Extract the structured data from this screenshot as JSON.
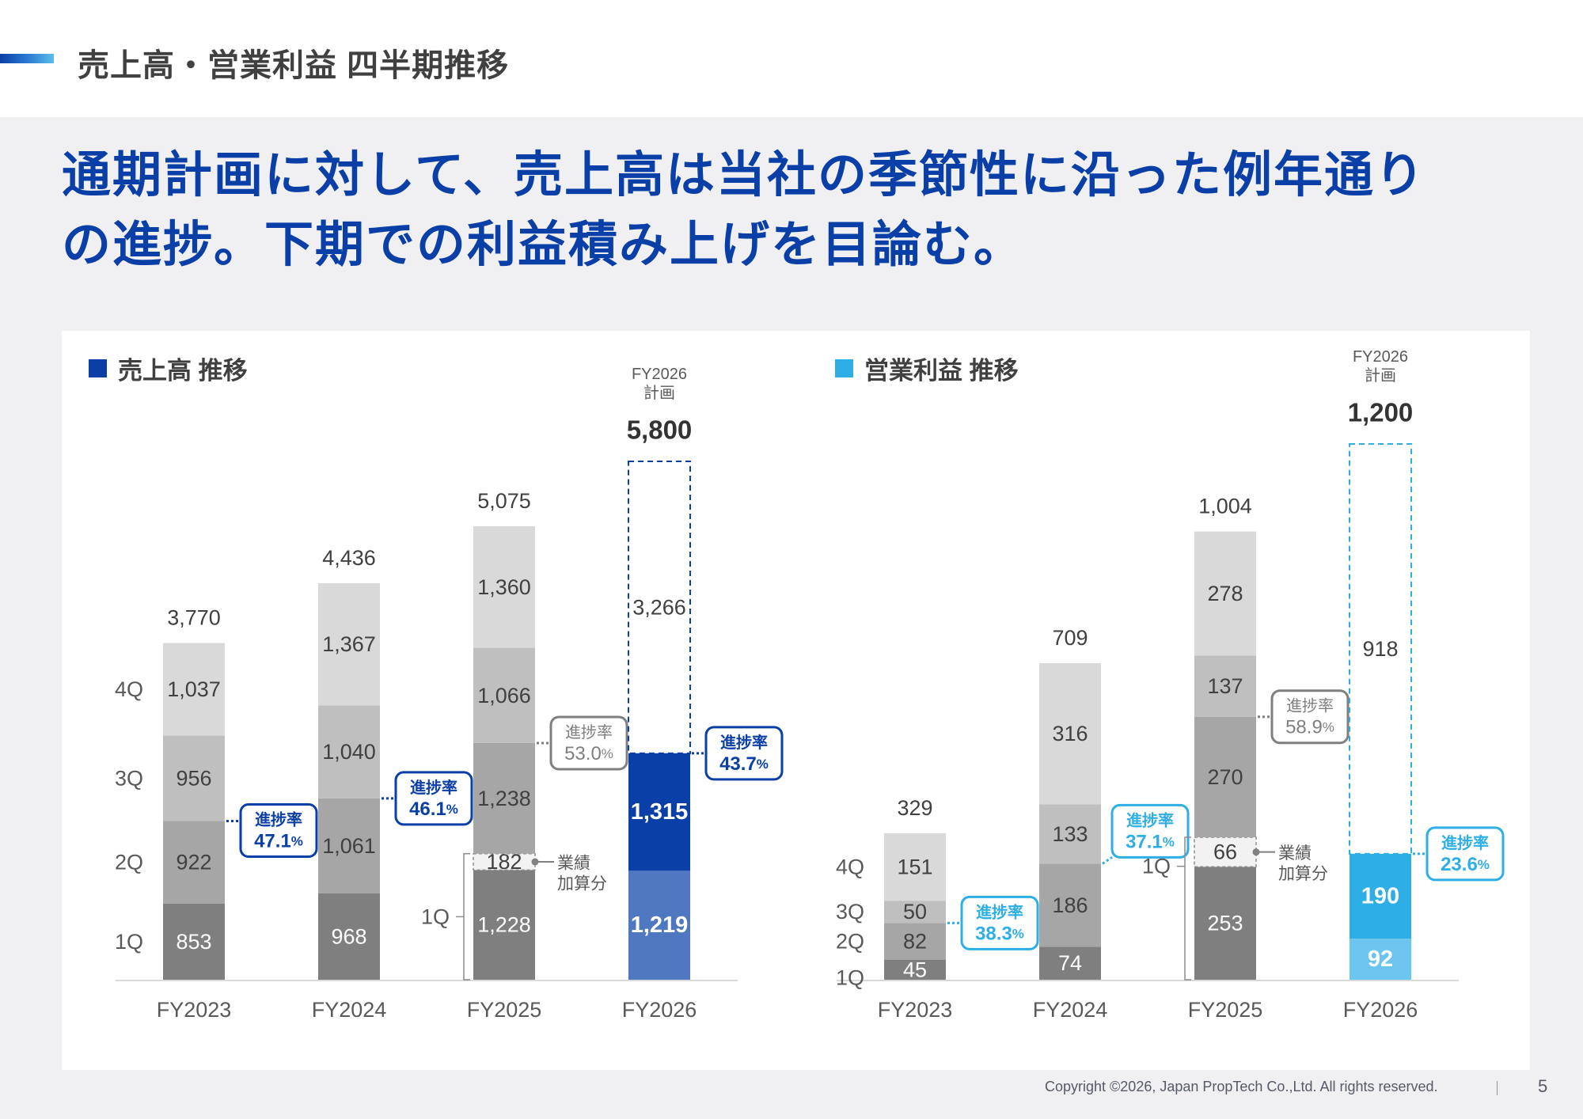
{
  "header": {
    "title": "売上高・営業利益 四半期推移"
  },
  "headline": {
    "line1": "通期計画に対して、売上高は当社の季節性に沿った例年通り",
    "line2": "の進捗。下期での利益積み上げを目論む。"
  },
  "colors": {
    "brand_blue": "#0a3fa8",
    "brand_light_blue": "#2eaee6",
    "q1_grey": "#7f7f7f",
    "q2_grey": "#a6a6a6",
    "q3_grey": "#bfbfbf",
    "q4_grey": "#d9d9d9",
    "revenue_1q_plan": "#5078c0",
    "op_1q_plan": "#6cc5ee",
    "added_segment_fill": "#f2f2f2"
  },
  "chart_data": [
    {
      "type": "bar",
      "stacked": true,
      "title": "売上高 推移",
      "title_marker_color": "#0a3fa8",
      "categories": [
        "FY2023",
        "FY2024",
        "FY2025",
        "FY2026"
      ],
      "quarter_labels": [
        "1Q",
        "2Q",
        "3Q",
        "4Q"
      ],
      "series": [
        {
          "name": "1Q",
          "values": [
            853,
            968,
            1228,
            1219
          ]
        },
        {
          "name": "1Q 業績加算分",
          "values": [
            0,
            0,
            182,
            0
          ]
        },
        {
          "name": "2Q",
          "values": [
            922,
            1061,
            1238,
            1315
          ]
        },
        {
          "name": "3Q",
          "values": [
            956,
            1040,
            1066,
            0
          ]
        },
        {
          "name": "4Q",
          "values": [
            1037,
            1367,
            1360,
            0
          ]
        }
      ],
      "totals": [
        "3,770",
        "4,436",
        "5,075",
        null
      ],
      "plan": {
        "label_line1": "FY2026",
        "label_line2": "計画",
        "total": 5800,
        "total_label": "5,800",
        "remaining": 3266,
        "remaining_label": "3,266"
      },
      "segment_labels": [
        [
          "853",
          "922",
          "956",
          "1,037"
        ],
        [
          "968",
          "1,061",
          "1,040",
          "1,367"
        ],
        [
          "1,228",
          "182",
          "1,238",
          "1,066",
          "1,360"
        ],
        [
          "1,219",
          "1,315"
        ]
      ],
      "progress": [
        {
          "category": "FY2023",
          "label": "進捗率",
          "value": "47.1",
          "unit": "%",
          "style": "blue"
        },
        {
          "category": "FY2024",
          "label": "進捗率",
          "value": "46.1",
          "unit": "%",
          "style": "blue"
        },
        {
          "category": "FY2025",
          "label": "進捗率",
          "value": "53.0",
          "unit": "%",
          "style": "grey"
        },
        {
          "category": "FY2026",
          "label": "進捗率",
          "value": "43.7",
          "unit": "%",
          "style": "blue"
        }
      ],
      "added_note": {
        "line1": "業績",
        "line2": "加算分"
      },
      "ylim": [
        0,
        5800
      ],
      "grid": false
    },
    {
      "type": "bar",
      "stacked": true,
      "title": "営業利益 推移",
      "title_marker_color": "#2eaee6",
      "categories": [
        "FY2023",
        "FY2024",
        "FY2025",
        "FY2026"
      ],
      "quarter_labels": [
        "1Q",
        "2Q",
        "3Q",
        "4Q"
      ],
      "series": [
        {
          "name": "1Q",
          "values": [
            45,
            74,
            253,
            92
          ]
        },
        {
          "name": "1Q 業績加算分",
          "values": [
            0,
            0,
            66,
            0
          ]
        },
        {
          "name": "2Q",
          "values": [
            82,
            186,
            270,
            190
          ]
        },
        {
          "name": "3Q",
          "values": [
            50,
            133,
            137,
            0
          ]
        },
        {
          "name": "4Q",
          "values": [
            151,
            316,
            278,
            0
          ]
        }
      ],
      "totals": [
        "329",
        "709",
        "1,004",
        null
      ],
      "plan": {
        "label_line1": "FY2026",
        "label_line2": "計画",
        "total": 1200,
        "total_label": "1,200",
        "remaining": 918,
        "remaining_label": "918"
      },
      "segment_labels": [
        [
          "45",
          "82",
          "50",
          "151"
        ],
        [
          "74",
          "186",
          "133",
          "316"
        ],
        [
          "253",
          "66",
          "270",
          "137",
          "278"
        ],
        [
          "92",
          "190"
        ]
      ],
      "progress": [
        {
          "category": "FY2023",
          "label": "進捗率",
          "value": "38.3",
          "unit": "%",
          "style": "blue"
        },
        {
          "category": "FY2024",
          "label": "進捗率",
          "value": "37.1",
          "unit": "%",
          "style": "blue"
        },
        {
          "category": "FY2025",
          "label": "進捗率",
          "value": "58.9",
          "unit": "%",
          "style": "grey"
        },
        {
          "category": "FY2026",
          "label": "進捗率",
          "value": "23.6",
          "unit": "%",
          "style": "blue"
        }
      ],
      "added_note": {
        "line1": "業績",
        "line2": "加算分"
      },
      "ylim": [
        0,
        1200
      ],
      "grid": false
    }
  ],
  "footer": {
    "copyright": "Copyright ©2026, Japan PropTech Co.,Ltd. All rights reserved.",
    "page_number": "5"
  }
}
